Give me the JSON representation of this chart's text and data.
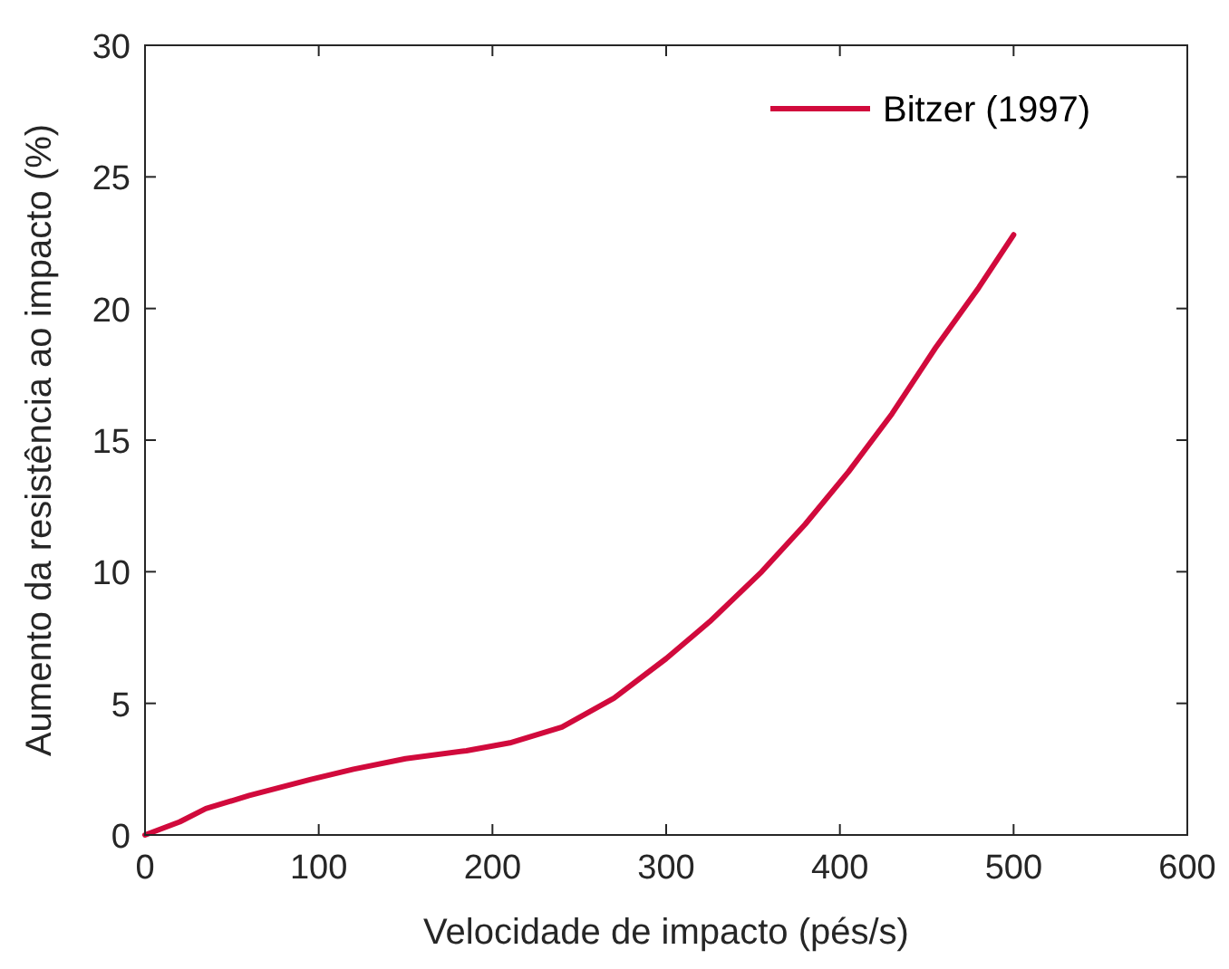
{
  "chart_data": {
    "type": "line",
    "xlabel": "Velocidade de impacto (pés/s)",
    "ylabel": "Aumento da resistência ao impacto (%)",
    "xlim": [
      0,
      600
    ],
    "xticks": [
      0,
      100,
      200,
      300,
      400,
      500,
      600
    ],
    "ylim": [
      0,
      30
    ],
    "yticks": [
      0,
      5,
      10,
      15,
      20,
      25,
      30
    ],
    "legend": "top right",
    "grid": false,
    "series": [
      {
        "name": "Bitzer (1997)",
        "color": "#d10a3c",
        "x": [
          0,
          20,
          35,
          60,
          95,
          120,
          150,
          185,
          210,
          240,
          270,
          300,
          325,
          355,
          380,
          405,
          430,
          455,
          480,
          500
        ],
        "values": [
          0,
          0.5,
          1.0,
          1.5,
          2.1,
          2.5,
          2.9,
          3.2,
          3.5,
          4.1,
          5.2,
          6.7,
          8.1,
          10,
          11.8,
          13.8,
          16,
          18.5,
          20.8,
          22.8
        ]
      }
    ]
  }
}
